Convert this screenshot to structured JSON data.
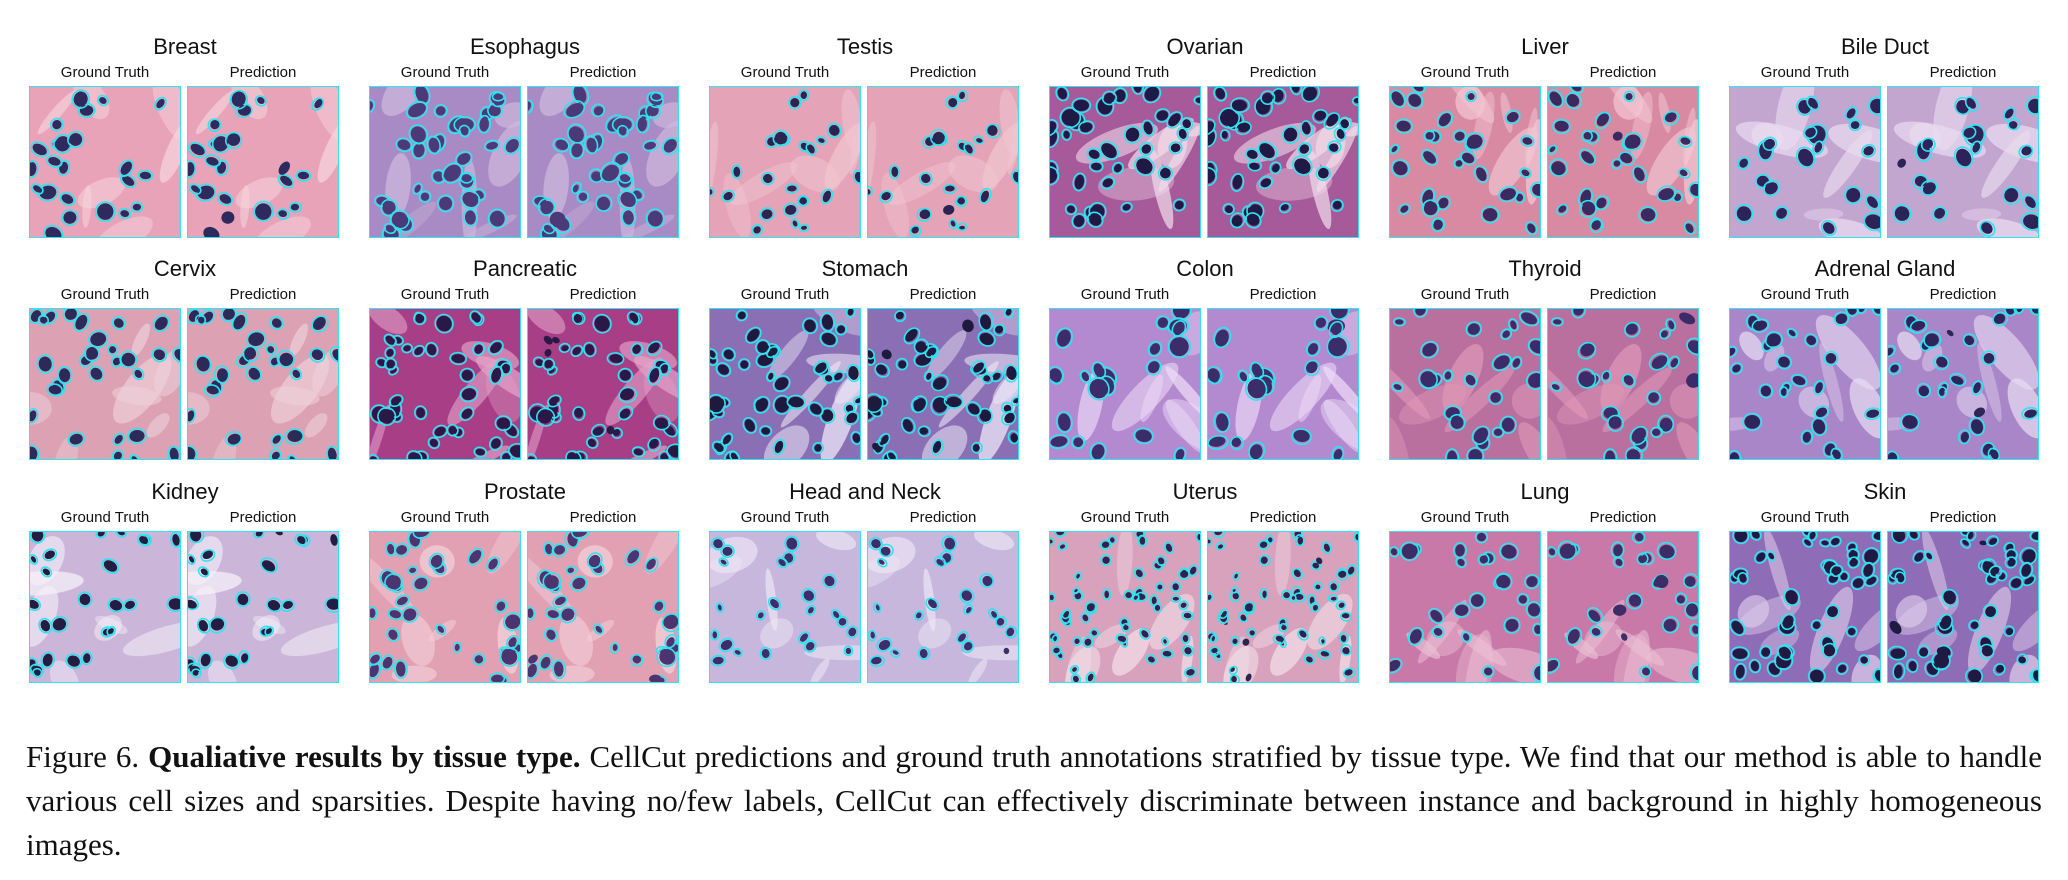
{
  "figure": {
    "labels": {
      "ground_truth": "Ground Truth",
      "prediction": "Prediction"
    },
    "outline_color": "#2fe3f0",
    "tissues": [
      {
        "name": "Breast",
        "palette": {
          "bg": "#e9a3b8",
          "fiber": "#f6d3dc",
          "nucleus": "#2f2a5e"
        },
        "density": 0.35,
        "size": 1.1
      },
      {
        "name": "Esophagus",
        "palette": {
          "bg": "#a88bc4",
          "fiber": "#cdb8dc",
          "nucleus": "#4a3a78"
        },
        "density": 0.7,
        "size": 1.2
      },
      {
        "name": "Testis",
        "palette": {
          "bg": "#e4a3b6",
          "fiber": "#f0c6d2",
          "nucleus": "#2b2350"
        },
        "density": 0.35,
        "size": 0.8
      },
      {
        "name": "Ovarian",
        "palette": {
          "bg": "#a65a9a",
          "fiber": "#f1dbe9",
          "nucleus": "#1f1a45"
        },
        "density": 0.75,
        "size": 1.1
      },
      {
        "name": "Liver",
        "palette": {
          "bg": "#d98aa3",
          "fiber": "#f2c7d3",
          "nucleus": "#3b2a60"
        },
        "density": 0.55,
        "size": 1.0
      },
      {
        "name": "Bile Duct",
        "palette": {
          "bg": "#c3a6d0",
          "fiber": "#eadcf0",
          "nucleus": "#2c2458"
        },
        "density": 0.3,
        "size": 1.2
      },
      {
        "name": "Cervix",
        "palette": {
          "bg": "#dca2b4",
          "fiber": "#efd3dc",
          "nucleus": "#2d2a5a"
        },
        "density": 0.5,
        "size": 1.0
      },
      {
        "name": "Pancreatic",
        "palette": {
          "bg": "#a83f86",
          "fiber": "#e3a4c9",
          "nucleus": "#2a1846"
        },
        "density": 0.85,
        "size": 1.0
      },
      {
        "name": "Stomach",
        "palette": {
          "bg": "#8a6fb4",
          "fiber": "#eee8f7",
          "nucleus": "#1e1a3e"
        },
        "density": 0.95,
        "size": 1.0
      },
      {
        "name": "Colon",
        "palette": {
          "bg": "#b38ad0",
          "fiber": "#eddcf7",
          "nucleus": "#3a2d6a"
        },
        "density": 0.3,
        "size": 1.3
      },
      {
        "name": "Thyroid",
        "palette": {
          "bg": "#b9709f",
          "fiber": "#e29ab8",
          "nucleus": "#3b2b68"
        },
        "density": 0.4,
        "size": 1.1
      },
      {
        "name": "Adrenal Gland",
        "palette": {
          "bg": "#a986c8",
          "fiber": "#e6dbf2",
          "nucleus": "#2d255a"
        },
        "density": 0.45,
        "size": 1.0
      },
      {
        "name": "Kidney",
        "palette": {
          "bg": "#cbb6da",
          "fiber": "#f5f0f8",
          "nucleus": "#231d42"
        },
        "density": 0.4,
        "size": 0.9
      },
      {
        "name": "Prostate",
        "palette": {
          "bg": "#e2a1b3",
          "fiber": "#f4d2dc",
          "nucleus": "#4b3570"
        },
        "density": 0.6,
        "size": 1.0
      },
      {
        "name": "Head and Neck",
        "palette": {
          "bg": "#c7b7dd",
          "fiber": "#efe8f5",
          "nucleus": "#3a2e6b"
        },
        "density": 0.35,
        "size": 0.8
      },
      {
        "name": "Uterus",
        "palette": {
          "bg": "#d8a2bc",
          "fiber": "#f2dde7",
          "nucleus": "#2b2450"
        },
        "density": 1.3,
        "size": 0.55
      },
      {
        "name": "Lung",
        "palette": {
          "bg": "#c979a8",
          "fiber": "#ecc2d5",
          "nucleus": "#3c2d66"
        },
        "density": 0.4,
        "size": 1.0
      },
      {
        "name": "Skin",
        "palette": {
          "bg": "#8f6cb6",
          "fiber": "#dccbea",
          "nucleus": "#1e1a42"
        },
        "density": 1.0,
        "size": 0.95
      }
    ]
  },
  "caption": {
    "label": "Figure 6.",
    "bold": "Qualiative results by tissue type.",
    "text": "CellCut predictions and ground truth annotations stratified by tissue type. We find that our method is able to handle various cell sizes and sparsities. Despite having no/few labels, CellCut can effectively discriminate between instance and background in highly homogeneous images."
  }
}
